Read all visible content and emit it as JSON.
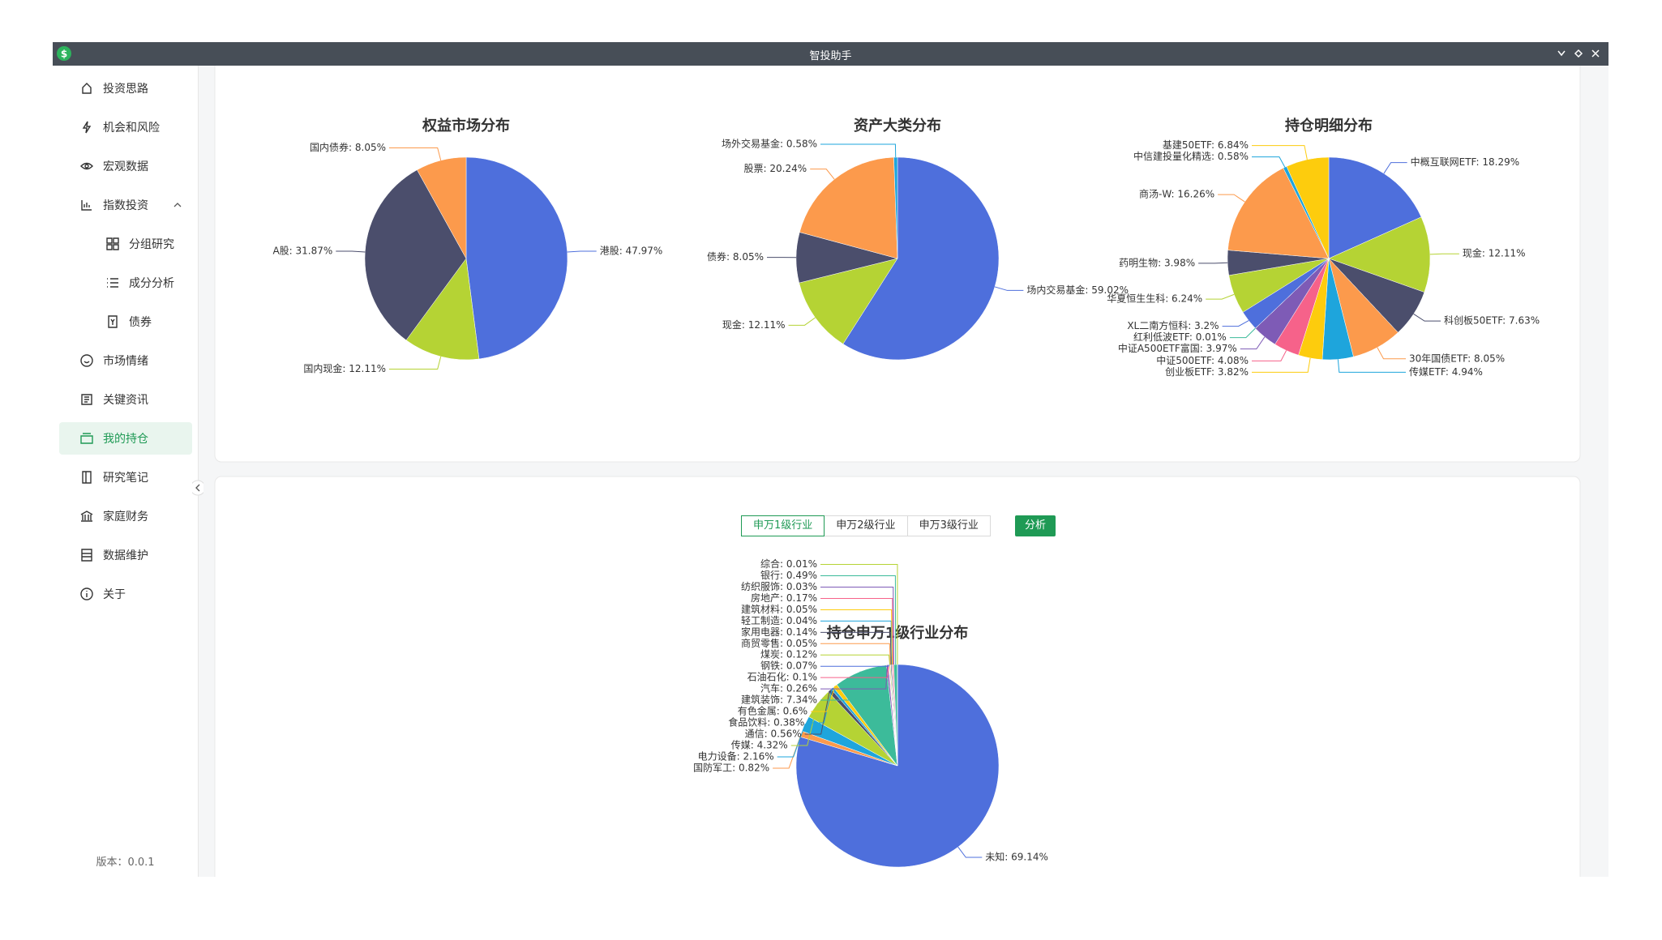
{
  "window": {
    "icon_text": "$",
    "title": "智投助手"
  },
  "sidebar": {
    "items": [
      {
        "label": "投资思路"
      },
      {
        "label": "机会和风险"
      },
      {
        "label": "宏观数据"
      },
      {
        "label": "指数投资",
        "expanded": true,
        "children": [
          "分组研究",
          "成分分析",
          "债券"
        ]
      },
      {
        "label": "市场情绪"
      },
      {
        "label": "关键资讯"
      },
      {
        "label": "我的持仓",
        "active": true
      },
      {
        "label": "研究笔记"
      },
      {
        "label": "家庭财务"
      },
      {
        "label": "数据维护"
      },
      {
        "label": "关于"
      }
    ],
    "version": "版本：0.0.1"
  },
  "tabs": {
    "items": [
      "申万1级行业",
      "申万2级行业",
      "申万3级行业"
    ],
    "active": 0
  },
  "analyze_button": "分析",
  "chart_data": [
    {
      "type": "pie",
      "title": "权益市场分布",
      "categories": [
        "港股",
        "国内现金",
        "A股",
        "国内债券"
      ],
      "values": [
        47.97,
        12.11,
        31.87,
        8.05
      ],
      "value_labels": [
        "港股: 47.97%",
        "国内现金: 12.11%",
        "A股: 31.87%",
        "国内债券: 8.05%"
      ],
      "colors": [
        "#4e6fdc",
        "#b5d334",
        "#4b4e6c",
        "#fc9a4c"
      ]
    },
    {
      "type": "pie",
      "title": "资产大类分布",
      "categories": [
        "场内交易基金",
        "现金",
        "债券",
        "股票",
        "场外交易基金"
      ],
      "values": [
        59.02,
        12.11,
        8.05,
        20.24,
        0.58
      ],
      "value_labels": [
        "场内交易基金: 59.02%",
        "现金: 12.11%",
        "债券: 8.05%",
        "股票: 20.24%",
        "场外交易基金: 0.58%"
      ],
      "colors": [
        "#4e6fdc",
        "#b5d334",
        "#4b4e6c",
        "#fc9a4c",
        "#1ea5dc"
      ]
    },
    {
      "type": "pie",
      "title": "持仓明细分布",
      "categories": [
        "中概互联网ETF",
        "现金",
        "科创板50ETF",
        "30年国债ETF",
        "传媒ETF",
        "创业板ETF",
        "中证500ETF",
        "中证A500ETF富国",
        "红利低波ETF",
        "XL二南方恒科",
        "华夏恒生生科",
        "药明生物",
        "商汤-W",
        "中信建投量化精选",
        "基建50ETF"
      ],
      "values": [
        18.29,
        12.11,
        7.63,
        8.05,
        4.94,
        3.82,
        4.08,
        3.97,
        0.01,
        3.2,
        6.24,
        3.98,
        16.26,
        0.58,
        6.84
      ],
      "value_labels": [
        "中概互联网ETF: 18.29%",
        "现金: 12.11%",
        "科创板50ETF: 7.63%",
        "30年国债ETF: 8.05%",
        "传媒ETF: 4.94%",
        "创业板ETF: 3.82%",
        "中证500ETF: 4.08%",
        "中证A500ETF富国: 3.97%",
        "红利低波ETF: 0.01%",
        "XL二南方恒科: 3.2%",
        "华夏恒生生科: 6.24%",
        "药明生物: 3.98%",
        "商汤-W: 16.26%",
        "中信建投量化精选: 0.58%",
        "基建50ETF: 6.84%"
      ],
      "colors": [
        "#4e6fdc",
        "#b5d334",
        "#4b4e6c",
        "#fc9a4c",
        "#1ea5dc",
        "#fdcc0d",
        "#f6628a",
        "#7e5bb6",
        "#3cbb9a",
        "#4e6fdc",
        "#b5d334",
        "#4b4e6c",
        "#fc9a4c",
        "#1ea5dc",
        "#fdcc0d"
      ]
    },
    {
      "type": "pie",
      "title": "持仓申万1级行业分布",
      "categories": [
        "未知",
        "国防军工",
        "电力设备",
        "传媒",
        "通信",
        "食品饮料",
        "有色金属",
        "建筑装饰",
        "汽车",
        "石油石化",
        "钢铁",
        "煤炭",
        "商贸零售",
        "家用电器",
        "轻工制造",
        "建筑材料",
        "房地产",
        "纺织服饰",
        "银行",
        "综合"
      ],
      "values": [
        69.14,
        0.82,
        2.16,
        4.32,
        0.56,
        0.38,
        0.6,
        7.34,
        0.26,
        0.1,
        0.07,
        0.12,
        0.05,
        0.14,
        0.04,
        0.05,
        0.17,
        0.03,
        0.49,
        0.01
      ],
      "value_labels": [
        "未知: 69.14%",
        "国防军工: 0.82%",
        "电力设备: 2.16%",
        "传媒: 4.32%",
        "通信: 0.56%",
        "食品饮料: 0.38%",
        "有色金属: 0.6%",
        "建筑装饰: 7.34%",
        "汽车: 0.26%",
        "石油石化: 0.1%",
        "钢铁: 0.07%",
        "煤炭: 0.12%",
        "商贸零售: 0.05%",
        "家用电器: 0.14%",
        "轻工制造: 0.04%",
        "建筑材料: 0.05%",
        "房地产: 0.17%",
        "纺织服饰: 0.03%",
        "银行: 0.49%",
        "综合: 0.01%"
      ],
      "colors": [
        "#4e6fdc",
        "#fc9a4c",
        "#1ea5dc",
        "#b5d334",
        "#4b4e6c",
        "#1ea5dc",
        "#fdcc0d",
        "#3cbb9a",
        "#7e5bb6",
        "#f6628a",
        "#4e6fdc",
        "#b5d334",
        "#fc9a4c",
        "#4b4e6c",
        "#1ea5dc",
        "#fdcc0d",
        "#f6628a",
        "#7e5bb6",
        "#3cbb9a",
        "#b5d334"
      ]
    }
  ]
}
